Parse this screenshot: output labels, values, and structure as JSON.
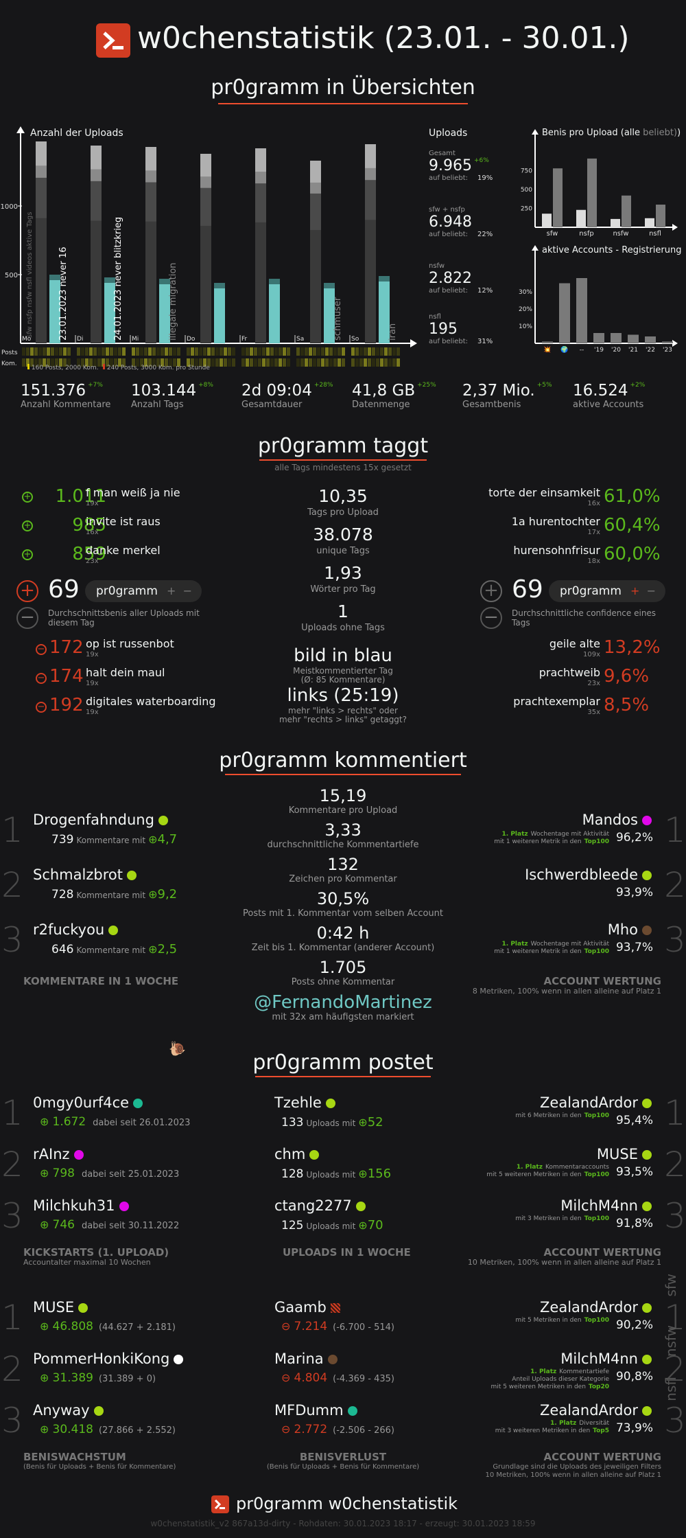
{
  "header": {
    "title": "w0chenstatistik (23.01. - 30.01.)"
  },
  "overview": {
    "heading": "pr0gramm in Übersichten",
    "uploads_axis": "Anzahl der Uploads",
    "y_ticks": [
      "1000",
      "500"
    ],
    "days": [
      "Mo",
      "Di",
      "Mi",
      "Do",
      "Fr",
      "Sa",
      "So"
    ],
    "vert_labels": [
      "23.01.2023 never 16",
      "24.01.2023 never blitzkrieg",
      "illegale migration",
      "schmuser",
      "iran"
    ],
    "layer_labels": "sfw nsfp nsfw nsfl videos aktive Tags",
    "heat_labels": [
      "Posts",
      "Kom."
    ],
    "legend1": "160 Posts, 2000 Kom.",
    "legend2": "240 Posts, 3000 Kom. pro Stunde",
    "uploads": {
      "title": "Uploads",
      "items": [
        {
          "label": "Gesamt",
          "value": "9.965",
          "delta": "+6%",
          "sub": "auf beliebt:",
          "pct": "19%"
        },
        {
          "label": "sfw + nsfp",
          "value": "6.948",
          "delta": "",
          "sub": "auf beliebt:",
          "pct": "22%"
        },
        {
          "label": "nsfw",
          "value": "2.822",
          "delta": "",
          "sub": "auf beliebt:",
          "pct": "12%"
        },
        {
          "label": "nsfl",
          "value": "195",
          "delta": "",
          "sub": "auf beliebt:",
          "pct": "31%"
        }
      ]
    },
    "benis_chart_title": "Benis pro Upload (alle",
    "benis_chart_title2": "beliebt)",
    "accounts_chart_title": "aktive Accounts - Registrierung",
    "stats": [
      {
        "value": "151.376",
        "delta": "+7%",
        "label": "Anzahl Kommentare"
      },
      {
        "value": "103.144",
        "delta": "+8%",
        "label": "Anzahl Tags"
      },
      {
        "value": "2d 09:04",
        "delta": "+28%",
        "label": "Gesamtdauer"
      },
      {
        "value": "41,8 GB",
        "delta": "+25%",
        "label": "Datenmenge"
      },
      {
        "value": "2,37 Mio.",
        "delta": "+5%",
        "label": "Gesamtbenis"
      },
      {
        "value": "16.524",
        "delta": "+2%",
        "label": "aktive Accounts"
      }
    ]
  },
  "chart_data": [
    {
      "type": "bar",
      "title": "Anzahl der Uploads",
      "categories": [
        "Mo",
        "Di",
        "Mi",
        "Do",
        "Fr",
        "Sa",
        "So"
      ],
      "series": [
        {
          "name": "sfw",
          "values": [
            1470,
            1440,
            1430,
            1380,
            1420,
            1330,
            1450
          ]
        },
        {
          "name": "nsfl",
          "values": [
            500,
            480,
            470,
            440,
            470,
            440,
            490
          ]
        }
      ],
      "ylim": [
        0,
        1500
      ]
    },
    {
      "type": "bar",
      "title": "Benis pro Upload",
      "categories": [
        "sfw",
        "nsfp",
        "nsfw",
        "nsfl"
      ],
      "series": [
        {
          "name": "beliebt",
          "values": [
            180,
            230,
            110,
            120
          ]
        },
        {
          "name": "alle",
          "values": [
            780,
            910,
            420,
            300
          ]
        }
      ],
      "ylim": [
        0,
        900
      ],
      "yticks": [
        "750",
        "500",
        "250"
      ]
    },
    {
      "type": "bar",
      "title": "aktive Accounts - Registrierung",
      "categories": [
        "💥",
        "🌍",
        "--",
        "'19",
        "'20",
        "'21",
        "'22",
        "'23"
      ],
      "values": [
        1,
        35,
        38,
        6,
        6,
        5,
        4,
        1
      ],
      "ylim": [
        0,
        40
      ],
      "yticks": [
        "30%",
        "20%",
        "10%"
      ]
    }
  ],
  "tags": {
    "heading": "pr0gramm taggt",
    "subtitle": "alle Tags mindestens 15x gesetzt",
    "top": [
      {
        "score": "1.011",
        "tag": "f man weiß ja nie",
        "n": "19x"
      },
      {
        "score": "985",
        "tag": "invite ist raus",
        "n": "16x"
      },
      {
        "score": "859",
        "tag": "danke merkel",
        "n": "23x"
      }
    ],
    "flop": [
      {
        "score": "172",
        "tag": "op ist russenbot",
        "n": "19x"
      },
      {
        "score": "174",
        "tag": "halt dein maul",
        "n": "19x"
      },
      {
        "score": "192",
        "tag": "digitales waterboarding",
        "n": "19x"
      }
    ],
    "avg": "69",
    "pill": "pr0gramm",
    "avg_desc": "Durchschnittsbenis aller Uploads mit diesem Tag",
    "conf_top": [
      {
        "tag": "torte der einsamkeit",
        "n": "16x",
        "pct": "61,0%"
      },
      {
        "tag": "1a hurentochter",
        "n": "17x",
        "pct": "60,4%"
      },
      {
        "tag": "hurensohnfrisur",
        "n": "18x",
        "pct": "60,0%"
      }
    ],
    "conf_flop": [
      {
        "tag": "geile alte",
        "n": "109x",
        "pct": "13,2%"
      },
      {
        "tag": "prachtweib",
        "n": "23x",
        "pct": "9,6%"
      },
      {
        "tag": "prachtexemplar",
        "n": "35x",
        "pct": "8,5%"
      }
    ],
    "conf_avg": "69",
    "conf_desc": "Durchschnittliche confidence eines Tags",
    "mid": [
      {
        "v": "10,35",
        "l": "Tags pro Upload"
      },
      {
        "v": "38.078",
        "l": "unique Tags"
      },
      {
        "v": "1,93",
        "l": "Wörter pro Tag"
      },
      {
        "v": "1",
        "l": "Uploads ohne Tags"
      }
    ],
    "most_tag": "bild in blau",
    "most_l1": "Meistkommentierter Tag",
    "most_l2": "(Ø: 85 Kommentare)",
    "links": "links (25:19)",
    "links_l1": "mehr \"links > rechts\" oder",
    "links_l2": "mehr \"rechts > links\" getaggt?"
  },
  "comments": {
    "heading": "pr0gramm kommentiert",
    "users": [
      {
        "name": "Drogenfahndung",
        "count": "739",
        "mid": "Kommentare mit",
        "benis": "4,7"
      },
      {
        "name": "Schmalzbrot",
        "count": "728",
        "mid": "Kommentare mit",
        "benis": "9,2"
      },
      {
        "name": "r2fuckyou",
        "count": "646",
        "mid": "Kommentare mit",
        "benis": "2,5"
      }
    ],
    "left_label": "KOMMENTARE IN 1 WOCHE",
    "mid": [
      {
        "v": "15,19",
        "l": "Kommentare pro Upload"
      },
      {
        "v": "3,33",
        "l": "durchschnittliche Kommentartiefe"
      },
      {
        "v": "132",
        "l": "Zeichen pro Kommentar"
      },
      {
        "v": "30,5%",
        "l": "Posts mit 1. Kommentar vom selben Account"
      },
      {
        "v": "0:42 h",
        "l": "Zeit bis 1. Kommentar (anderer Account)"
      },
      {
        "v": "1.705",
        "l": "Posts ohne Kommentar"
      }
    ],
    "mention": "@FernandoMartinez",
    "mention_l": "mit 32x am häufigsten markiert",
    "right": [
      {
        "name": "Mandos",
        "p": "1. Platz",
        "l1": "Wochentage mit Aktivität",
        "l2": "mit 1 weiteren Metrik in den",
        "t": "Top100",
        "pct": "96,2%"
      },
      {
        "name": "Ischwerdbleede",
        "p": "",
        "l1": "",
        "l2": "",
        "t": "",
        "pct": "93,9%"
      },
      {
        "name": "Mho",
        "p": "1. Platz",
        "l1": "Wochentage mit Aktivität",
        "l2": "mit 1 weiteren Metrik in den",
        "t": "Top100",
        "pct": "93,7%"
      }
    ],
    "right_label": "ACCOUNT WERTUNG",
    "right_sub": "8 Metriken, 100% wenn in allen alleine auf Platz 1"
  },
  "posts": {
    "heading": "pr0gramm postet",
    "kick": [
      {
        "name": "0mgy0urf4ce",
        "benis": "1.672",
        "since": "dabei seit 26.01.2023"
      },
      {
        "name": "rAInz",
        "benis": "798",
        "since": "dabei seit 25.01.2023"
      },
      {
        "name": "Milchkuh31",
        "benis": "746",
        "since": "dabei seit 30.11.2022"
      }
    ],
    "kick_label": "KICKSTARTS (1. UPLOAD)",
    "kick_sub": "Accountalter maximal 10 Wochen",
    "up": [
      {
        "name": "Tzehle",
        "n": "133",
        "mid": "Uploads mit",
        "b": "52"
      },
      {
        "name": "chm",
        "n": "128",
        "mid": "Uploads mit",
        "b": "156"
      },
      {
        "name": "ctang2277",
        "n": "125",
        "mid": "Uploads mit",
        "b": "70"
      }
    ],
    "up_label": "UPLOADS IN 1 WOCHE",
    "acc": [
      {
        "name": "ZealandArdor",
        "p": "",
        "l1": "",
        "l2": "mit 6 Metriken in den",
        "t": "Top100",
        "pct": "95,4%"
      },
      {
        "name": "MUSE",
        "p": "1. Platz",
        "l1": "Kommentaraccounts",
        "l2": "mit 5 weiteren Metriken in den",
        "t": "Top100",
        "pct": "93,5%"
      },
      {
        "name": "MilchM4nn",
        "p": "",
        "l1": "",
        "l2": "mit 3 Metriken in den",
        "t": "Top100",
        "pct": "91,8%"
      }
    ],
    "acc_label": "ACCOUNT WERTUNG",
    "acc_sub": "10 Metriken, 100% wenn in allen alleine auf Platz 1",
    "grow": [
      {
        "name": "MUSE",
        "v": "46.808",
        "d": "(44.627 + 2.181)"
      },
      {
        "name": "PommerHonkiKong",
        "v": "31.389",
        "d": "(31.389 + 0)"
      },
      {
        "name": "Anyway",
        "v": "30.418",
        "d": "(27.866 + 2.552)"
      }
    ],
    "grow_label": "BENISWACHSTUM",
    "grow_sub": "(Benis für Uploads + Benis für Kommentare)",
    "loss": [
      {
        "name": "Gaamb",
        "v": "7.214",
        "d": "(-6.700 - 514)"
      },
      {
        "name": "Marina",
        "v": "4.804",
        "d": "(-4.369 - 435)"
      },
      {
        "name": "MFDumm",
        "v": "2.772",
        "d": "(-2.506 - 266)"
      }
    ],
    "loss_label": "BENISVERLUST",
    "loss_sub": "(Benis für Uploads + Benis für Kommentare)",
    "acc2": [
      {
        "name": "ZealandArdor",
        "p": "",
        "l1": "",
        "l2": "mit 5 Metriken in den",
        "t": "Top100",
        "pct": "90,2%",
        "side": "sfw"
      },
      {
        "name": "MilchM4nn",
        "p": "1. Platz",
        "l1": "Kommentartiefe",
        "l1b": "Anteil Uploads dieser Kategorie",
        "l2": "mit 5 weiteren Metriken in den",
        "t": "Top20",
        "pct": "90,8%",
        "side": "nsfw"
      },
      {
        "name": "ZealandArdor",
        "p": "1. Platz",
        "l1": "Diversität",
        "l2": "mit 3 weiteren Metriken in den",
        "t": "Top5",
        "pct": "73,9%",
        "side": "nsfl"
      }
    ],
    "acc2_label": "ACCOUNT WERTUNG",
    "acc2_sub1": "Grundlage sind die Uploads des jeweiligen Filters",
    "acc2_sub2": "10 Metriken, 100% wenn in allen alleine auf Platz 1"
  },
  "footer": {
    "title": "pr0gramm w0chenstatistik",
    "meta": "w0chenstatistik_v2 867a13d-dirty - Rohdaten: 30.01.2023 18:17 - erzeugt: 30.01.2023 18:59"
  },
  "colors": {
    "accent": "#ee4d2e",
    "green": "#5bb91c",
    "red": "#d23c22",
    "teal": "#6fc8c4",
    "userGreen": "#a7d713",
    "userPink": "#e108e9",
    "userTeal": "#1cb992",
    "userBrown": "#6b4a30",
    "userWhite": "#ffffff"
  }
}
